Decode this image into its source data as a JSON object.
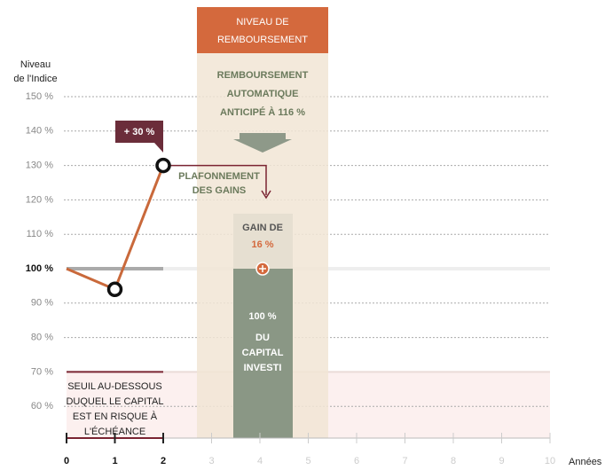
{
  "chart_data": {
    "type": "line",
    "y_label": [
      "Niveau",
      "de l'Indice"
    ],
    "x_label": "Années",
    "xlim": [
      0,
      10
    ],
    "xticks": [
      0,
      1,
      2,
      3,
      4,
      5,
      6,
      7,
      8,
      9,
      10
    ],
    "ylim": [
      50,
      150
    ],
    "yticks": [
      {
        "value": 60,
        "label": "60 %"
      },
      {
        "value": 70,
        "label": "70 %"
      },
      {
        "value": 80,
        "label": "80 %"
      },
      {
        "value": 90,
        "label": "90 %"
      },
      {
        "value": 100,
        "label": "100 %"
      },
      {
        "value": 110,
        "label": "110 %"
      },
      {
        "value": 120,
        "label": "120 %"
      },
      {
        "value": 130,
        "label": "130 %"
      },
      {
        "value": 140,
        "label": "140 %"
      },
      {
        "value": 150,
        "label": "150 %"
      }
    ],
    "reference_level": 100,
    "x": [
      0,
      1,
      2
    ],
    "values": [
      100,
      94,
      130
    ],
    "color": "#c9693b",
    "callout": "+ 30 %",
    "cap_note": [
      "PLAFONNEMENT",
      "DES GAINS"
    ],
    "threshold": {
      "value": 70,
      "color": "#7a2432",
      "label": [
        "SEUIL AU-DESSOUS",
        "DUQUEL LE CAPITAL",
        "EST EN RISQUE À",
        "L'ÉCHÉANCE"
      ]
    },
    "repayment": {
      "header": [
        "NIVEAU DE",
        "REMBOURSEMENT"
      ],
      "text": [
        "REMBOURSEMENT",
        "AUTOMATIQUE",
        "ANTICIPÉ À 116 %"
      ],
      "level": 116,
      "capital": 100,
      "gain_title": "GAIN DE",
      "gain_label": "16 %",
      "capital_label": [
        "100 %",
        "DU",
        "CAPITAL",
        "INVESTI"
      ]
    }
  }
}
